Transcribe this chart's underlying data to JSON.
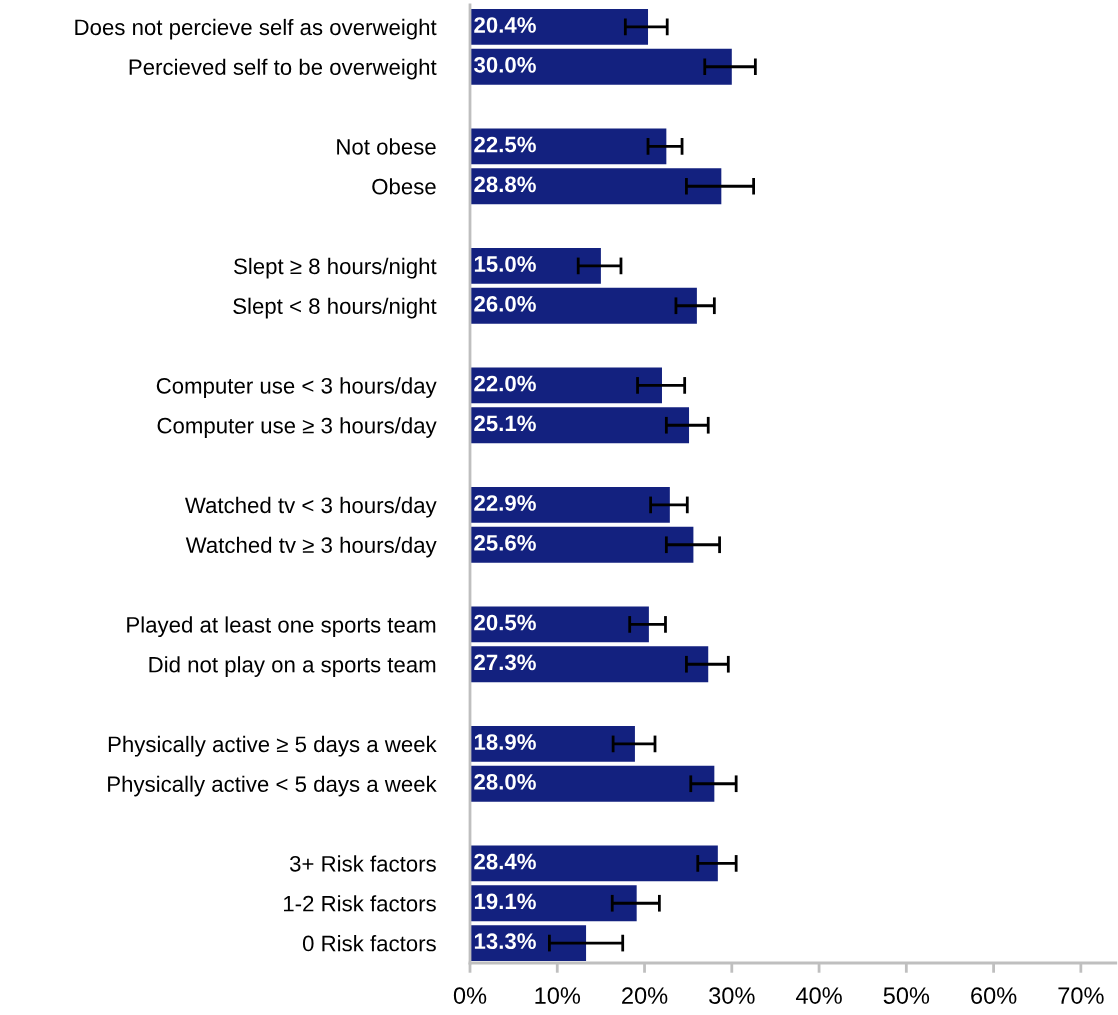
{
  "chart_data": {
    "type": "bar",
    "orientation": "horizontal",
    "categories": [
      "Does not percieve self as overweight",
      "Percieved self to be overweight",
      null,
      "Not obese",
      "Obese",
      null,
      "Slept ≥ 8 hours/night",
      "Slept < 8 hours/night",
      null,
      "Computer use < 3 hours/day",
      "Computer use ≥ 3 hours/day",
      null,
      "Watched tv < 3 hours/day",
      "Watched tv ≥ 3 hours/day",
      null,
      "Played at least one sports team",
      "Did not play on a sports team",
      null,
      "Physically active ≥ 5 days a week",
      "Physically active < 5 days a week",
      null,
      "3+ Risk factors",
      "1-2 Risk factors",
      "0 Risk factors"
    ],
    "values": [
      20.4,
      30.0,
      null,
      22.5,
      28.8,
      null,
      15.0,
      26.0,
      null,
      22.0,
      25.1,
      null,
      22.9,
      25.6,
      null,
      20.5,
      27.3,
      null,
      18.9,
      28.0,
      null,
      28.4,
      19.1,
      13.3
    ],
    "value_labels": [
      "20.4%",
      "30.0%",
      null,
      "22.5%",
      "28.8%",
      null,
      "15.0%",
      "26.0%",
      null,
      "22.0%",
      "25.1%",
      null,
      "22.9%",
      "25.6%",
      null,
      "20.5%",
      "27.3%",
      null,
      "18.9%",
      "28.0%",
      null,
      "28.4%",
      "19.1%",
      "13.3%"
    ],
    "errors": [
      [
        17.8,
        22.6
      ],
      [
        26.9,
        32.7
      ],
      null,
      [
        20.4,
        24.3
      ],
      [
        24.8,
        32.5
      ],
      null,
      [
        12.4,
        17.3
      ],
      [
        23.6,
        28.0
      ],
      null,
      [
        19.2,
        24.6
      ],
      [
        22.5,
        27.3
      ],
      null,
      [
        20.7,
        24.9
      ],
      [
        22.5,
        28.6
      ],
      null,
      [
        18.3,
        22.4
      ],
      [
        24.8,
        29.6
      ],
      null,
      [
        16.4,
        21.2
      ],
      [
        25.3,
        30.5
      ],
      null,
      [
        26.1,
        30.5
      ],
      [
        16.3,
        21.7
      ],
      [
        9.1,
        17.5
      ]
    ],
    "color": "#13217f",
    "xlim": [
      0,
      74
    ],
    "xticks": [
      {
        "value": 0,
        "label": "0%"
      },
      {
        "value": 10,
        "label": "10%"
      },
      {
        "value": 20,
        "label": "20%"
      },
      {
        "value": 30,
        "label": "30%"
      },
      {
        "value": 40,
        "label": "40%"
      },
      {
        "value": 50,
        "label": "50%"
      },
      {
        "value": 60,
        "label": "60%"
      },
      {
        "value": 70,
        "label": "70%"
      }
    ],
    "grid": false
  }
}
